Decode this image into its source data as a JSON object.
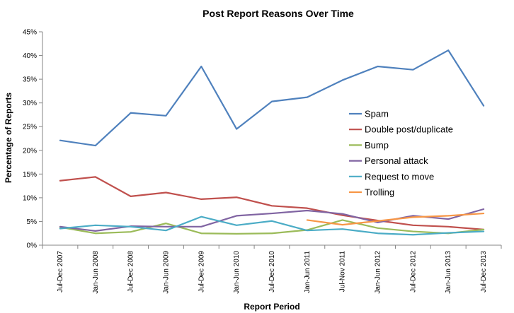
{
  "chart_data": {
    "type": "line",
    "title": "Post Report Reasons Over Time",
    "xlabel": "Report Period",
    "ylabel": "Percentage of Reports",
    "categories": [
      "Jul-Dec 2007",
      "Jan-Jun 2008",
      "Jul-Dec 2008",
      "Jan-Jun 2009",
      "Jul-Dec 2009",
      "Jan-Jun 2010",
      "Jul-Dec 2010",
      "Jan-Jun 2011",
      "Jul-Nov 2011",
      "Jan-Jun 2012",
      "Jul-Dec 2012",
      "Jan-Jun 2013",
      "Jul-Dec 2013"
    ],
    "ylim": [
      0,
      45
    ],
    "yticks": [
      "0%",
      "5%",
      "10%",
      "15%",
      "20%",
      "25%",
      "30%",
      "35%",
      "40%",
      "45%"
    ],
    "grid": false,
    "legend_position": "right",
    "series": [
      {
        "name": "Spam",
        "color": "#4F81BD",
        "values": [
          22.1,
          21.0,
          27.9,
          27.3,
          37.7,
          24.5,
          30.3,
          31.2,
          34.8,
          37.7,
          37.0,
          41.1,
          29.4
        ]
      },
      {
        "name": "Double post/duplicate",
        "color": "#C0504D",
        "values": [
          13.6,
          14.4,
          10.3,
          11.1,
          9.7,
          10.1,
          8.3,
          7.8,
          6.3,
          5.2,
          4.2,
          3.9,
          3.3
        ]
      },
      {
        "name": "Bump",
        "color": "#9BBB59",
        "values": [
          3.8,
          2.5,
          2.8,
          4.6,
          2.5,
          2.4,
          2.5,
          3.2,
          5.3,
          3.6,
          2.9,
          2.5,
          3.3
        ]
      },
      {
        "name": "Personal attack",
        "color": "#8064A2",
        "values": [
          3.9,
          3.0,
          4.0,
          3.9,
          3.9,
          6.2,
          6.7,
          7.3,
          6.6,
          4.8,
          6.2,
          5.5,
          7.6
        ]
      },
      {
        "name": "Request to move",
        "color": "#4BACC6",
        "values": [
          3.5,
          4.2,
          3.9,
          3.1,
          6.0,
          4.2,
          5.1,
          3.1,
          3.4,
          2.5,
          2.2,
          2.6,
          2.9
        ]
      },
      {
        "name": "Trolling",
        "color": "#F79646",
        "values": [
          null,
          null,
          null,
          null,
          null,
          null,
          null,
          5.3,
          4.3,
          5.1,
          5.9,
          6.2,
          6.7
        ]
      }
    ]
  }
}
